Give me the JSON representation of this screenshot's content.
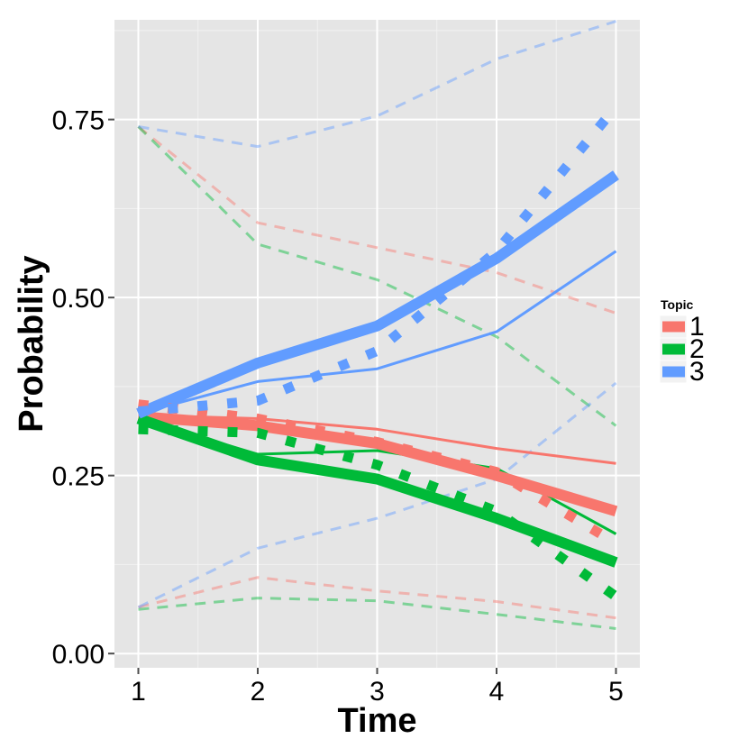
{
  "chart_data": {
    "type": "line",
    "title": "",
    "xlabel": "Time",
    "ylabel": "Probability",
    "x": [
      1,
      2,
      3,
      4,
      5
    ],
    "xlim": [
      0.8,
      5.2
    ],
    "ylim": [
      -0.02,
      0.89
    ],
    "xticks": [
      "1",
      "2",
      "3",
      "4",
      "5"
    ],
    "yticks": [
      "0.00",
      "0.25",
      "0.50",
      "0.75"
    ],
    "ytick_values": [
      0,
      0.25,
      0.5,
      0.75
    ],
    "grid": true,
    "background": "#E5E5E5",
    "legend": {
      "title": "Topic",
      "placement": "right",
      "entries": [
        {
          "label": "1",
          "color": "#F8766D"
        },
        {
          "label": "2",
          "color": "#00BA38"
        },
        {
          "label": "3",
          "color": "#619CFF"
        }
      ]
    },
    "series": [
      {
        "name": "1",
        "style": "thick",
        "color": "#F8766D",
        "values": [
          0.333,
          0.32,
          0.295,
          0.25,
          0.2
        ]
      },
      {
        "name": "2",
        "style": "thick",
        "color": "#00BA38",
        "values": [
          0.33,
          0.272,
          0.245,
          0.19,
          0.128
        ]
      },
      {
        "name": "3",
        "style": "thick",
        "color": "#619CFF",
        "values": [
          0.337,
          0.408,
          0.46,
          0.555,
          0.672
        ]
      },
      {
        "name": "1",
        "style": "solid",
        "color": "#F8766D",
        "values": [
          0.335,
          0.33,
          0.315,
          0.288,
          0.267
        ]
      },
      {
        "name": "2",
        "style": "solid",
        "color": "#00BA38",
        "values": [
          0.33,
          0.28,
          0.285,
          0.26,
          0.168
        ]
      },
      {
        "name": "3",
        "style": "solid",
        "color": "#619CFF",
        "values": [
          0.337,
          0.382,
          0.4,
          0.452,
          0.565
        ]
      },
      {
        "name": "1",
        "style": "dotted",
        "color": "#F8766D",
        "values": [
          0.35,
          0.33,
          0.297,
          0.255,
          0.155
        ]
      },
      {
        "name": "2",
        "style": "dotted",
        "color": "#00BA38",
        "values": [
          0.315,
          0.31,
          0.265,
          0.2,
          0.08
        ]
      },
      {
        "name": "3",
        "style": "dotted",
        "color": "#619CFF",
        "values": [
          0.34,
          0.355,
          0.425,
          0.565,
          0.768
        ]
      },
      {
        "name": "1",
        "style": "dashed-upper",
        "color": "#F8766D",
        "values": [
          0.74,
          0.605,
          0.57,
          0.535,
          0.478
        ]
      },
      {
        "name": "2",
        "style": "dashed-upper",
        "color": "#00BA38",
        "values": [
          0.74,
          0.575,
          0.525,
          0.445,
          0.32
        ]
      },
      {
        "name": "3",
        "style": "dashed-upper",
        "color": "#619CFF",
        "values": [
          0.74,
          0.712,
          0.755,
          0.835,
          0.888
        ]
      },
      {
        "name": "1",
        "style": "dashed-lower",
        "color": "#F8766D",
        "values": [
          0.065,
          0.107,
          0.088,
          0.073,
          0.05
        ]
      },
      {
        "name": "2",
        "style": "dashed-lower",
        "color": "#00BA38",
        "values": [
          0.062,
          0.078,
          0.074,
          0.055,
          0.035
        ]
      },
      {
        "name": "3",
        "style": "dashed-lower",
        "color": "#619CFF",
        "values": [
          0.065,
          0.148,
          0.19,
          0.245,
          0.38
        ]
      }
    ]
  }
}
